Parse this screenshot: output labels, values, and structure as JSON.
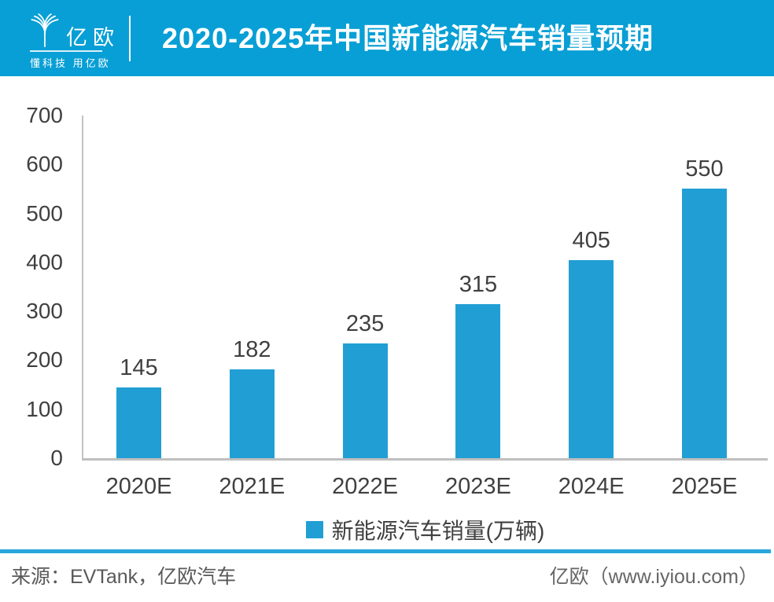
{
  "header": {
    "logo": {
      "name": "亿欧",
      "tagline": "懂科技 用亿欧"
    },
    "title": "2020-2025年中国新能源汽车销量预期",
    "bg_color": "#079FD5",
    "text_color": "#FFFFFF"
  },
  "chart_data": {
    "type": "bar",
    "title": "2020-2025年中国新能源汽车销量预期",
    "categories": [
      "2020E",
      "2021E",
      "2022E",
      "2023E",
      "2024E",
      "2025E"
    ],
    "values": [
      145,
      182,
      235,
      315,
      405,
      550
    ],
    "series_name": "新能源汽车销量(万辆)",
    "xlabel": "",
    "ylabel": "",
    "ylim": [
      0,
      700
    ],
    "yticks": [
      0,
      100,
      200,
      300,
      400,
      500,
      600,
      700
    ],
    "bar_color": "#219FD4",
    "label_color": "#404040",
    "grid": false,
    "data_labels": true,
    "legend_position": "bottom"
  },
  "footer": {
    "source": "来源：EVTank，亿欧汽车",
    "brand": "亿欧（www.iyiou.com）",
    "divider_color": "#2AA7DC"
  }
}
